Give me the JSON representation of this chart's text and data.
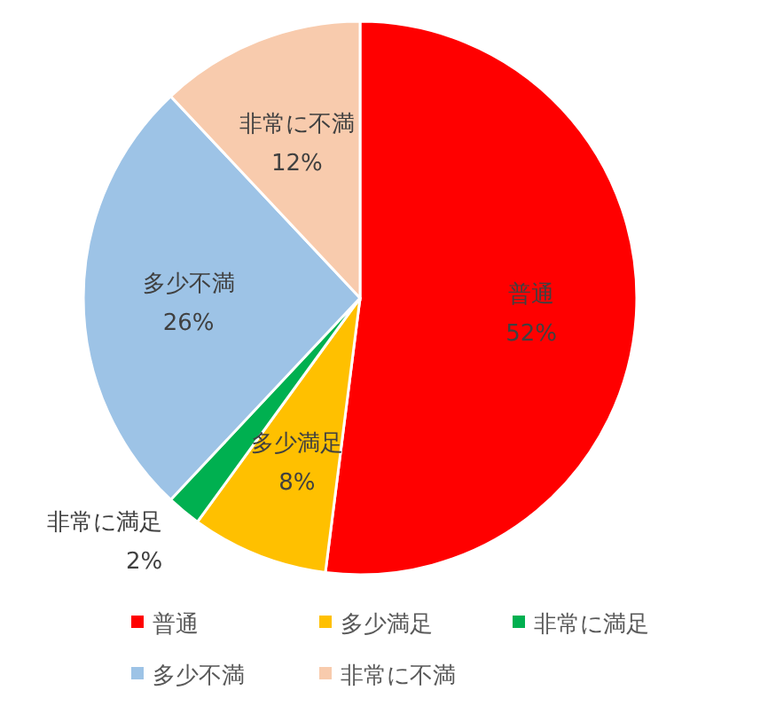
{
  "chart_data": {
    "type": "pie",
    "categories": [
      "普通",
      "多少満足",
      "非常に満足",
      "多少不満",
      "非常に不満"
    ],
    "values": [
      52,
      8,
      2,
      26,
      12
    ],
    "value_labels": [
      "52%",
      "8%",
      "2%",
      "26%",
      "12%"
    ],
    "colors": [
      "#ff0000",
      "#ffc000",
      "#00b050",
      "#9dc3e6",
      "#f8cbad"
    ],
    "legend": "bottom"
  }
}
